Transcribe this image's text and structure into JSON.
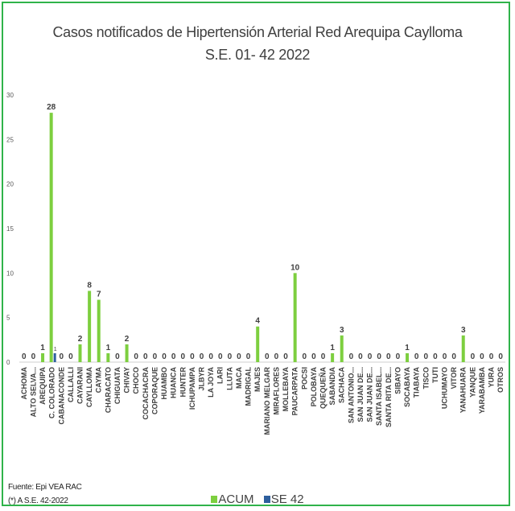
{
  "chart_data": {
    "type": "bar",
    "title": "Casos notificados de Hipertensión Arterial Red Arequipa  Caylloma",
    "subtitle": "S.E. 01- 42 2022",
    "ylim": [
      0,
      30
    ],
    "yticks": [
      0,
      5,
      10,
      15,
      20,
      25,
      30
    ],
    "grid": false,
    "legend_position": "bottom",
    "categories": [
      "ACHOMA",
      "ALTO SELVA...",
      "AREQUIPA",
      "C. COLORADO",
      "CABANACONDE",
      "CALLALLI",
      "CAYARANI",
      "CAYLLOMA",
      "CAYMA",
      "CHARACATO",
      "CHIGUATA",
      "CHIVAY",
      "CHOCO",
      "COCACHACRA",
      "COPORAQUE",
      "HUAMBO",
      "HUANCA",
      "HUNTER",
      "ICHUPAMPA",
      "JLBYR",
      "LA JOYA",
      "LARI",
      "LLUTA",
      "MACA",
      "MADRIGAL",
      "MAJES",
      "MARIANO MELGAR",
      "MIRAFLORES",
      "MOLLEBAYA",
      "PAUCARPATA",
      "POCSI",
      "POLOBAYA",
      "QUEQUEÑA",
      "SABANDIA",
      "SACHACA",
      "SAN ANTONIO...",
      "SAN JUAN DE...",
      "SAN JUAN DE...",
      "SANTA ISABEL...",
      "SANTA RITA DE...",
      "SIBAYO",
      "SOCABAYA",
      "TIABAYA",
      "TISCO",
      "TUTI",
      "UCHUMAYO",
      "VITOR",
      "YANAHUARA",
      "YANQUE",
      "YARABAMBA",
      "YURA",
      "OTROS"
    ],
    "series": [
      {
        "name": "ACUM",
        "color": "#7dcf3f",
        "values": [
          0,
          0,
          1,
          28,
          0,
          0,
          2,
          8,
          7,
          1,
          0,
          2,
          0,
          0,
          0,
          0,
          0,
          0,
          0,
          0,
          0,
          0,
          0,
          0,
          0,
          4,
          0,
          0,
          0,
          10,
          0,
          0,
          0,
          1,
          3,
          0,
          0,
          0,
          0,
          0,
          0,
          1,
          0,
          0,
          0,
          0,
          0,
          3,
          0,
          0,
          0,
          0
        ]
      },
      {
        "name": "SE 42",
        "color": "#2e5f9e",
        "values": [
          null,
          null,
          null,
          1,
          null,
          null,
          null,
          null,
          null,
          null,
          null,
          null,
          null,
          null,
          null,
          null,
          null,
          null,
          null,
          null,
          null,
          null,
          null,
          null,
          null,
          null,
          null,
          null,
          null,
          null,
          null,
          null,
          null,
          null,
          null,
          null,
          null,
          null,
          null,
          null,
          null,
          null,
          null,
          null,
          null,
          null,
          null,
          null,
          null,
          null,
          null,
          null
        ]
      }
    ]
  },
  "legend": {
    "acum": "ACUM",
    "se42": "SE 42"
  },
  "footer": {
    "source": "Fuente: Epi VEA RAC",
    "note": "(*) A S.E. 42-2022"
  }
}
